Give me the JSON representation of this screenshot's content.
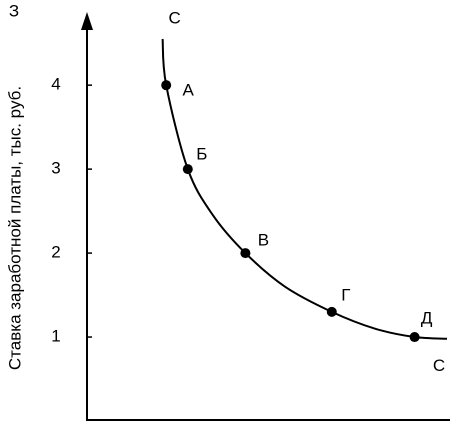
{
  "chart_data": {
    "type": "line",
    "y_axis_top_label": "З",
    "ylabel": "Ставка заработной платы, тыс. руб.",
    "xlim": [
      0,
      10
    ],
    "ylim": [
      0,
      4.8
    ],
    "yticks": [
      1,
      2,
      3,
      4
    ],
    "color": "#000000",
    "curve": {
      "label": "С",
      "x": [
        2.1,
        2.2,
        2.8,
        3.5,
        4.4,
        5.5,
        6.8,
        8.0,
        9.1,
        10.0
      ],
      "values": [
        4.55,
        4.0,
        3.0,
        2.45,
        2.0,
        1.6,
        1.3,
        1.1,
        1.0,
        0.98
      ]
    },
    "points": {
      "labels": [
        "А",
        "Б",
        "В",
        "Г",
        "Д"
      ],
      "x": [
        2.2,
        2.8,
        4.4,
        6.8,
        9.1
      ],
      "values": [
        4.0,
        3.0,
        2.0,
        1.3,
        1.0
      ]
    }
  }
}
